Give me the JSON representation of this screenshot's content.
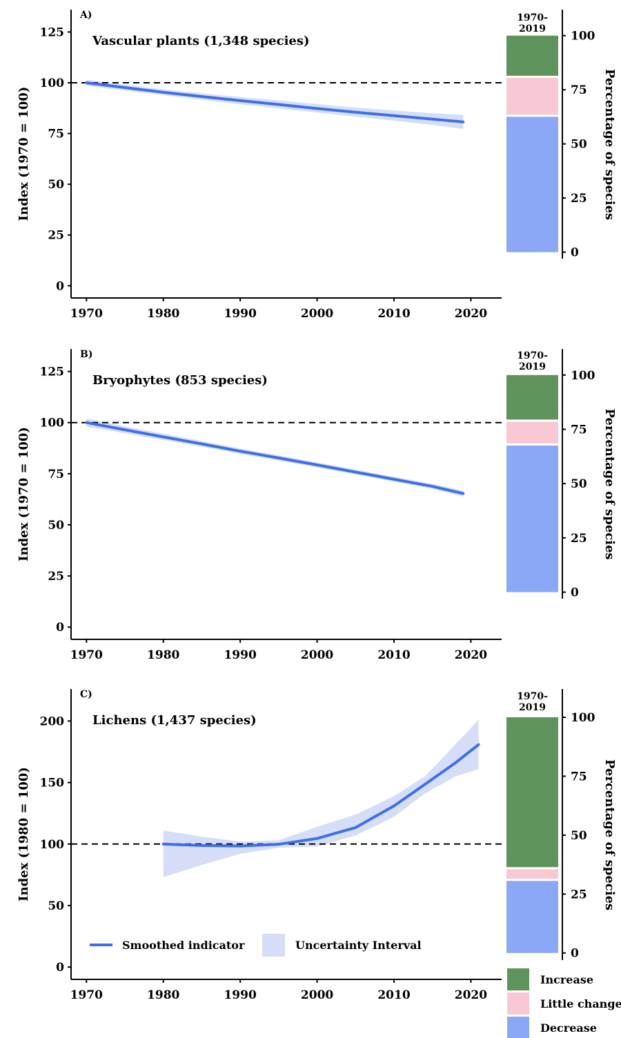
{
  "chart_data": [
    {
      "type": "line",
      "panel_label": "A)",
      "title": "Vascular plants (1,348 species)",
      "ylabel": "Index (1970 = 100)",
      "baseline": 100,
      "xlim": [
        1968,
        2024
      ],
      "ylim": [
        -6,
        136
      ],
      "xticks": [
        1970,
        1980,
        1990,
        2000,
        2010,
        2020
      ],
      "yticks": [
        0,
        25,
        50,
        75,
        100,
        125
      ],
      "series": [
        {
          "x": [
            1970,
            1975,
            1980,
            1985,
            1990,
            1995,
            2000,
            2005,
            2010,
            2015,
            2019
          ],
          "values": [
            100,
            97.6,
            95.3,
            93.2,
            91.2,
            89.3,
            87.3,
            85.5,
            83.8,
            82.1,
            80.7
          ],
          "lower": [
            98.5,
            96.2,
            93.9,
            91.6,
            89.4,
            87.4,
            85.3,
            83.3,
            81.3,
            79.2,
            77.2
          ],
          "upper": [
            101.5,
            99.0,
            96.8,
            94.8,
            93.0,
            91.3,
            89.5,
            87.8,
            86.3,
            85.0,
            84.2
          ]
        }
      ],
      "species_pct": {
        "period": "1970-2019",
        "decrease": 63,
        "little_change": 18,
        "increase": 19,
        "ylim": [
          -3,
          112
        ],
        "yticks": [
          0,
          25,
          50,
          75,
          100
        ],
        "ylabel": "Percentage of species"
      }
    },
    {
      "type": "line",
      "panel_label": "B)",
      "title": "Bryophytes (853 species)",
      "ylabel": "Index (1970 = 100)",
      "baseline": 100,
      "xlim": [
        1968,
        2024
      ],
      "ylim": [
        -6,
        136
      ],
      "xticks": [
        1970,
        1980,
        1990,
        2000,
        2010,
        2020
      ],
      "yticks": [
        0,
        25,
        50,
        75,
        100,
        125
      ],
      "series": [
        {
          "x": [
            1970,
            1975,
            1980,
            1985,
            1990,
            1995,
            2000,
            2005,
            2010,
            2015,
            2019
          ],
          "values": [
            100,
            96.5,
            93.0,
            89.6,
            86.0,
            82.7,
            79.3,
            75.8,
            72.3,
            68.8,
            65.3
          ],
          "lower": [
            98.0,
            94.8,
            91.5,
            88.2,
            84.7,
            81.4,
            78.1,
            74.6,
            71.1,
            67.6,
            63.8
          ],
          "upper": [
            102.0,
            98.2,
            94.6,
            91.0,
            87.3,
            84.0,
            80.5,
            77.0,
            73.5,
            70.0,
            66.8
          ]
        }
      ],
      "species_pct": {
        "period": "1970-2019",
        "decrease": 68,
        "little_change": 11,
        "increase": 21,
        "ylim": [
          -3,
          112
        ],
        "yticks": [
          0,
          25,
          50,
          75,
          100
        ],
        "ylabel": "Percentage of species"
      }
    },
    {
      "type": "line",
      "panel_label": "C)",
      "title": "Lichens (1,437 species)",
      "ylabel": "Index (1980 = 100)",
      "baseline": 100,
      "xlim": [
        1968,
        2024
      ],
      "ylim": [
        -10,
        226
      ],
      "xticks": [
        1970,
        1980,
        1990,
        2000,
        2010,
        2020
      ],
      "yticks": [
        0,
        50,
        100,
        150,
        200
      ],
      "series": [
        {
          "x": [
            1980,
            1985,
            1990,
            1995,
            2000,
            2005,
            2010,
            2014,
            2018,
            2021
          ],
          "values": [
            100,
            98.8,
            98.4,
            99.8,
            104.5,
            113.4,
            131.0,
            148.4,
            166.0,
            180.8
          ],
          "lower": [
            73,
            83,
            92,
            97,
            98,
            107,
            122,
            141,
            155,
            161
          ],
          "upper": [
            111,
            106,
            102,
            103,
            114,
            124,
            139,
            155,
            181,
            201
          ]
        }
      ],
      "species_pct": {
        "period": "1970-2019",
        "decrease": 31,
        "little_change": 5,
        "increase": 64,
        "ylim": [
          -3,
          112
        ],
        "yticks": [
          0,
          25,
          50,
          75,
          100
        ],
        "ylabel": "Percentage of species"
      }
    }
  ],
  "legend": {
    "smoothed": "Smoothed indicator",
    "uncertainty": "Uncertainty Interval",
    "increase": "Increase",
    "little_change": "Little change",
    "decrease": "Decrease"
  },
  "colors": {
    "line": "#3f6fe6",
    "band": "#d5def6",
    "increase": "#5f935c",
    "little_change": "#f8c9d5",
    "decrease": "#8aa8f6",
    "baseline": "#000000"
  }
}
